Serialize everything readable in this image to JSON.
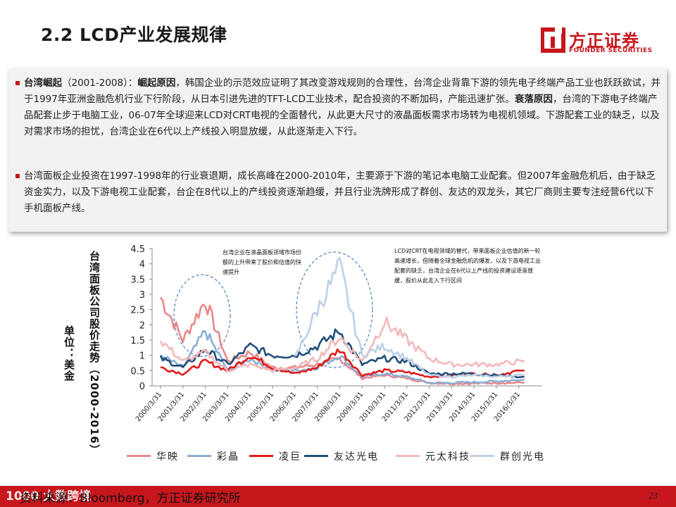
{
  "page": {
    "title": "2.2 LCD产业发展规律",
    "page_number": "23",
    "source": "资料来源：Bloomberg，方正证券研究所",
    "watermark": "1000 大数跨境"
  },
  "logo": {
    "name_cn": "方正证券",
    "name_en": "FOUNDER SECURITIES",
    "brand_color": "#c8161d"
  },
  "bullets": [
    {
      "head": "台湾崛起",
      "period": "（2001-2008）：",
      "reason1_head": "崛起原因",
      "reason1_text": "，韩国企业的示范效应证明了其改变游戏规则的合理性，台湾企业背靠下游的领先电子终端产品工业也跃跃欲试，并于1997年亚洲金融危机行业下行阶段，从日本引进先进的TFT-LCD工业技术，配合投资的不断加码，产能迅速扩张。",
      "reason2_head": "衰落原因",
      "reason2_text": "，台湾的下游电子终端产品配套止步于电脑工业，06-07年全球迎来LCD对CRT电视的全面替代，从此更大尺寸的液晶面板需求市场转为电视机领域。下游配套工业的缺乏，以及对需求市场的担忧，台湾企业在6代以上产线投入明显放缓，从此逐渐走入下行。"
    },
    {
      "text": "台湾面板企业投资在1997-1998年的行业衰退期，成长高峰在2000-2010年，主要源于下游的笔记本电脑工业配套。但2007年金融危机后，由于缺乏资金实力，以及下游电视工业配套，台企在8代以上的产线投资逐渐趋缓，并且行业洗牌形成了群创、友达的双龙头，其它厂商则主要专注经营6代以下手机面板产线。"
    }
  ],
  "chart_data": {
    "type": "line",
    "title": "台湾面板公司股价走势（2000-2016）",
    "ylabel": "单位：美金",
    "ylim": [
      0,
      4.5
    ],
    "yticks": [
      "0",
      "0.5",
      "1",
      "1.5",
      "2",
      "2.5",
      "3",
      "3.5",
      "4",
      "4.5"
    ],
    "categories": [
      "2000/3/31",
      "2001/3/31",
      "2002/3/31",
      "2003/3/31",
      "2004/3/31",
      "2005/3/31",
      "2006/3/31",
      "2007/3/31",
      "2008/3/31",
      "2009/3/31",
      "2010/3/31",
      "2011/3/31",
      "2012/3/31",
      "2013/3/31",
      "2014/3/31",
      "2015/3/31",
      "2016/3/31"
    ],
    "annotations": [
      "台湾企业在液晶面板领域市场份额的上升带来了股价和估值的快速提升",
      "LCD对CRT在电视领域的替代，带来面板企业估值的新一轮高速增长，但随着全球金融危机的爆发，以及下游电视工业配套的缺乏，台湾企业在6代以上产线的投资建设逐渐放缓，股价从此走入下行区间"
    ],
    "series": [
      {
        "name": "华映",
        "color": "#e8888a",
        "values": [
          2.9,
          1.5,
          2.8,
          0.8,
          1.1,
          0.6,
          0.6,
          0.7,
          0.9,
          0.25,
          0.35,
          0.25,
          0.1,
          0.08,
          0.08,
          0.1,
          0.1
        ]
      },
      {
        "name": "彩晶",
        "color": "#8aaed6",
        "values": [
          1.0,
          0.6,
          1.8,
          0.5,
          0.9,
          0.5,
          0.5,
          0.6,
          1.0,
          0.3,
          0.4,
          0.3,
          0.1,
          0.1,
          0.12,
          0.15,
          0.2
        ]
      },
      {
        "name": "凌巨",
        "color": "#e31b1b",
        "values": [
          0.6,
          0.4,
          0.8,
          0.5,
          1.0,
          0.6,
          0.4,
          0.6,
          1.2,
          0.35,
          0.5,
          0.45,
          0.3,
          0.35,
          0.4,
          0.35,
          0.5
        ]
      },
      {
        "name": "友达光电",
        "color": "#1f4e79",
        "values": [
          0.9,
          0.6,
          1.2,
          0.7,
          1.3,
          1.0,
          1.0,
          1.3,
          1.8,
          0.7,
          0.9,
          0.8,
          0.4,
          0.4,
          0.4,
          0.35,
          0.3
        ]
      },
      {
        "name": "元太科技",
        "color": "#f4b8ba",
        "values": [
          1.5,
          0.8,
          1.1,
          0.5,
          0.7,
          0.5,
          0.6,
          0.9,
          1.6,
          0.8,
          2.1,
          1.5,
          0.9,
          0.7,
          0.7,
          0.7,
          0.8
        ]
      },
      {
        "name": "群创光电",
        "color": "#bdd0e6",
        "values": [
          null,
          null,
          null,
          null,
          null,
          null,
          0.9,
          2.5,
          3.9,
          1.0,
          1.3,
          0.9,
          0.35,
          0.3,
          0.35,
          0.3,
          0.35
        ]
      }
    ]
  }
}
